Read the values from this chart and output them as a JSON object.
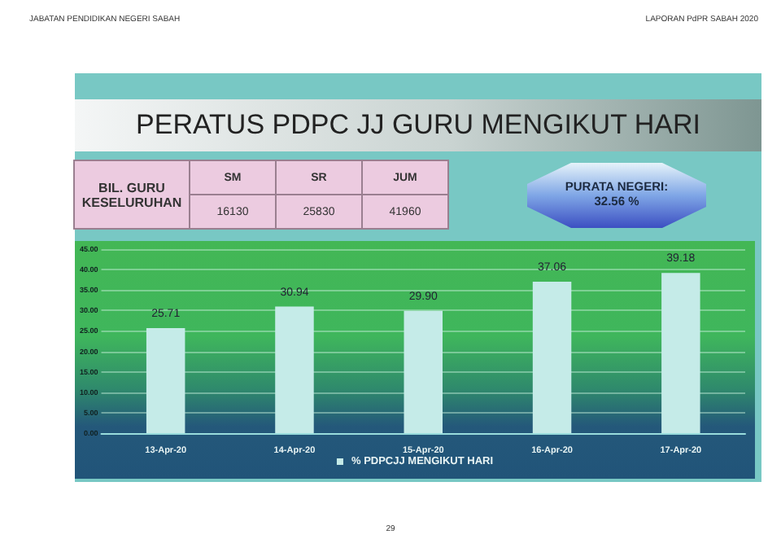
{
  "chart_data": {
    "type": "bar",
    "title": "PERATUS PDPC JJ GURU MENGIKUT HARI",
    "annotations": [
      "JABATAN PENDIDIKAN NEGERI SABAH",
      "LAPORAN PdPR SABAH 2020",
      "BIL. GURU KESELURUHAN",
      "SM",
      "SR",
      "JUM",
      "16130",
      "25830",
      "41960",
      "PURATA NEGERI: 32.56 %",
      "29"
    ],
    "categories": [
      "13-Apr-20",
      "14-Apr-20",
      "15-Apr-20",
      "16-Apr-20",
      "17-Apr-20"
    ],
    "series": [
      {
        "name": "% PDPCJJ MENGIKUT HARI",
        "color": "#c5ebe8",
        "values": [
          25.71,
          30.94,
          29.9,
          37.06,
          39.18
        ],
        "value_labels": [
          "25.71",
          "30.94",
          "29.90",
          "37.06",
          "39.18"
        ]
      }
    ],
    "ylim": [
      0,
      45
    ],
    "yticks": [
      {
        "value": 0,
        "label": "0.00"
      },
      {
        "value": 5,
        "label": "5.00"
      },
      {
        "value": 10,
        "label": "10.00"
      },
      {
        "value": 15,
        "label": "15.00"
      },
      {
        "value": 20,
        "label": "20.00"
      },
      {
        "value": 25,
        "label": "25.00"
      },
      {
        "value": 30,
        "label": "30.00"
      },
      {
        "value": 35,
        "label": "35.00"
      },
      {
        "value": 40,
        "label": "40.00"
      },
      {
        "value": 45,
        "label": "45.00"
      }
    ],
    "grid": "y",
    "legend": "bottom"
  }
}
